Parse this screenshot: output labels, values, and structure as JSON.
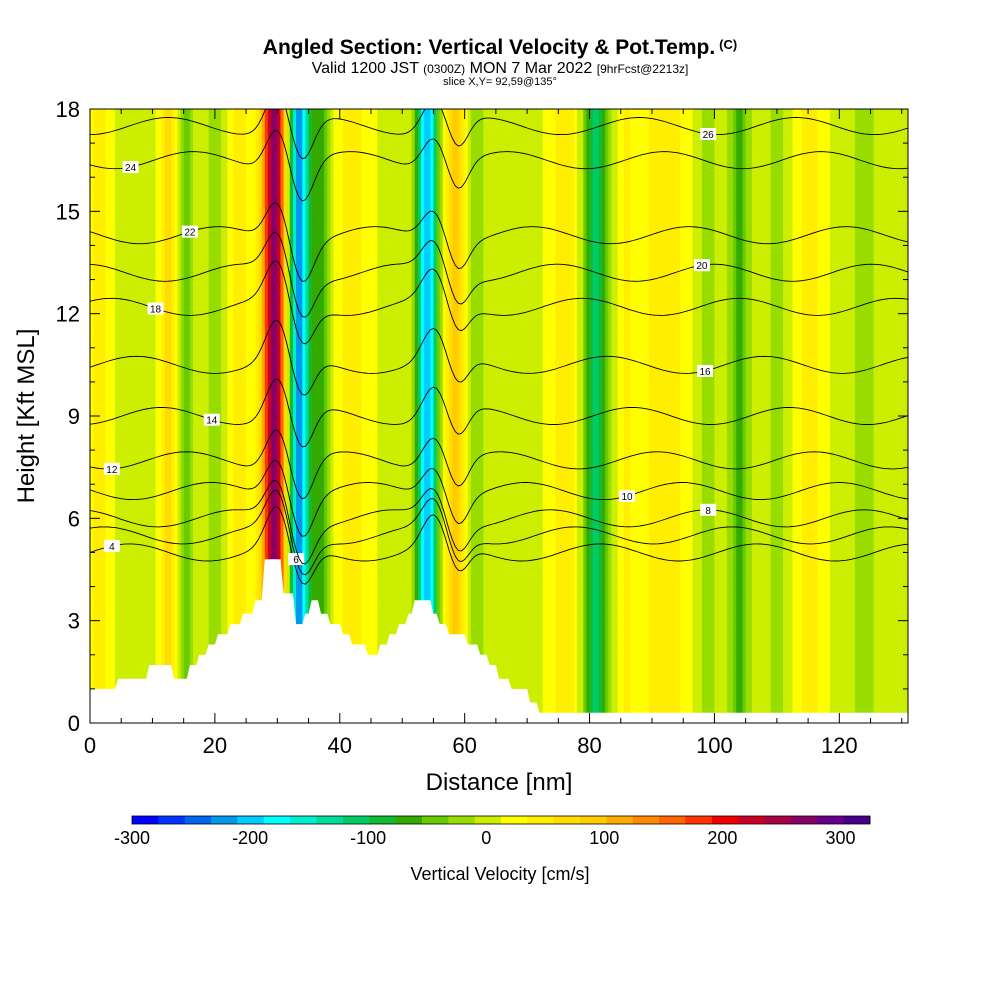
{
  "title": {
    "main": "Angled Section: Vertical Velocity & Pot.Temp.",
    "copyright": "(C)"
  },
  "subtitle": {
    "valid": "Valid 1200 JST",
    "utc": "(0300Z)",
    "date": "MON 7 Mar 2022",
    "forecast": "[9hrFcst@2213z]"
  },
  "slice_label": "slice X,Y= 92,59@135°",
  "chart_data": {
    "type": "heatmap",
    "title": "Angled Section: Vertical Velocity & Pot.Temp.",
    "xlabel": "Distance [nm]",
    "ylabel": "Height [Kft MSL]",
    "xlim": [
      0,
      131
    ],
    "ylim": [
      0,
      18
    ],
    "x_ticks": [
      "0",
      "20",
      "40",
      "60",
      "80",
      "100",
      "120"
    ],
    "y_ticks": [
      "0",
      "3",
      "6",
      "9",
      "12",
      "15",
      "18"
    ],
    "colorbar": {
      "label": "Vertical Velocity [cm/s]",
      "min": -300,
      "max": 325,
      "ticks": [
        "-300",
        "-200",
        "-100",
        "0",
        "100",
        "200",
        "300"
      ],
      "colors": [
        "#0000ff",
        "#0033ff",
        "#0066ee",
        "#0099ee",
        "#00ccff",
        "#00ffff",
        "#00eecc",
        "#00dd99",
        "#00cc66",
        "#11bb33",
        "#33aa00",
        "#66cc00",
        "#99dd00",
        "#ccee00",
        "#ffff00",
        "#ffee00",
        "#ffdd00",
        "#ffcc00",
        "#ffaa00",
        "#ff8800",
        "#ff6600",
        "#ff3300",
        "#ee0000",
        "#cc0022",
        "#aa0044",
        "#880066",
        "#660088",
        "#440088"
      ]
    },
    "background_value": 10,
    "updraft_downdraft_bands": [
      {
        "x": 1.5,
        "w": 1.5,
        "v": 45
      },
      {
        "x": 7,
        "w": 1.5,
        "v": -10
      },
      {
        "x": 12.5,
        "w": 1.2,
        "v": 60
      },
      {
        "x": 15.5,
        "w": 1.2,
        "v": -45
      },
      {
        "x": 20,
        "w": 1.5,
        "v": -30
      },
      {
        "x": 24,
        "w": 1.5,
        "v": 45
      },
      {
        "x": 29.5,
        "w": 1.8,
        "v": 260
      },
      {
        "x": 33.5,
        "w": 1.6,
        "v": -230
      },
      {
        "x": 37,
        "w": 1.5,
        "v": -70
      },
      {
        "x": 42,
        "w": 2.5,
        "v": 35
      },
      {
        "x": 54,
        "w": 1.6,
        "v": -220
      },
      {
        "x": 58.5,
        "w": 1.5,
        "v": 90
      },
      {
        "x": 62,
        "w": 1.4,
        "v": -40
      },
      {
        "x": 76,
        "w": 2,
        "v": 40
      },
      {
        "x": 81,
        "w": 1.8,
        "v": -120
      },
      {
        "x": 86,
        "w": 1.5,
        "v": 25
      },
      {
        "x": 92,
        "w": 3.5,
        "v": 40
      },
      {
        "x": 99,
        "w": 2,
        "v": -25
      },
      {
        "x": 104,
        "w": 1.6,
        "v": -70
      },
      {
        "x": 110,
        "w": 2.5,
        "v": -25
      },
      {
        "x": 115,
        "w": 2,
        "v": 40
      },
      {
        "x": 124,
        "w": 2,
        "v": -30
      }
    ],
    "terrain": [
      [
        0,
        1.0
      ],
      [
        4,
        1.0
      ],
      [
        4.5,
        1.3
      ],
      [
        9,
        1.3
      ],
      [
        9.5,
        1.7
      ],
      [
        13,
        1.7
      ],
      [
        13.5,
        1.3
      ],
      [
        15.5,
        1.3
      ],
      [
        16,
        1.7
      ],
      [
        17,
        1.7
      ],
      [
        17.5,
        2.0
      ],
      [
        18.5,
        2.0
      ],
      [
        19,
        2.3
      ],
      [
        20,
        2.3
      ],
      [
        20.5,
        2.6
      ],
      [
        22,
        2.6
      ],
      [
        22.5,
        2.9
      ],
      [
        24,
        2.9
      ],
      [
        24.5,
        3.2
      ],
      [
        26,
        3.2
      ],
      [
        26.5,
        3.6
      ],
      [
        27.5,
        3.6
      ],
      [
        28,
        4.8
      ],
      [
        30.5,
        4.8
      ],
      [
        31,
        3.8
      ],
      [
        32.5,
        3.8
      ],
      [
        33,
        2.9
      ],
      [
        34,
        2.9
      ],
      [
        34.5,
        3.2
      ],
      [
        35,
        3.2
      ],
      [
        35.5,
        3.6
      ],
      [
        36.5,
        3.6
      ],
      [
        37,
        3.2
      ],
      [
        38,
        3.2
      ],
      [
        38.5,
        2.9
      ],
      [
        40,
        2.9
      ],
      [
        40.5,
        2.6
      ],
      [
        41.5,
        2.6
      ],
      [
        42,
        2.3
      ],
      [
        44,
        2.3
      ],
      [
        44.5,
        2.0
      ],
      [
        46,
        2.0
      ],
      [
        46.5,
        2.3
      ],
      [
        47.5,
        2.3
      ],
      [
        48,
        2.6
      ],
      [
        49,
        2.6
      ],
      [
        49.5,
        2.9
      ],
      [
        50.5,
        2.9
      ],
      [
        51,
        3.2
      ],
      [
        51.5,
        3.2
      ],
      [
        52,
        3.6
      ],
      [
        54.5,
        3.6
      ],
      [
        55,
        3.2
      ],
      [
        55.5,
        3.2
      ],
      [
        56,
        2.9
      ],
      [
        57,
        2.9
      ],
      [
        57.5,
        2.6
      ],
      [
        60,
        2.6
      ],
      [
        60.5,
        2.3
      ],
      [
        62,
        2.3
      ],
      [
        62.5,
        2.0
      ],
      [
        63.5,
        2.0
      ],
      [
        64,
        1.7
      ],
      [
        65,
        1.7
      ],
      [
        65.5,
        1.3
      ],
      [
        67,
        1.3
      ],
      [
        67.5,
        1.0
      ],
      [
        70,
        1.0
      ],
      [
        70.5,
        0.6
      ],
      [
        71.5,
        0.6
      ],
      [
        72,
        0.3
      ],
      [
        131,
        0.3
      ]
    ],
    "theta_contours": [
      {
        "label": "4",
        "base": 5.0,
        "lx": 3.5
      },
      {
        "label": "6",
        "base": 5.5,
        "lx": 33
      },
      {
        "label": "8",
        "base": 6.0,
        "lx": 99
      },
      {
        "label": "10",
        "base": 6.8,
        "lx": 86
      },
      {
        "label": "12",
        "base": 7.7,
        "lx": 3.5
      },
      {
        "label": "14",
        "base": 9.0,
        "lx": 19.5
      },
      {
        "label": "16",
        "base": 10.5,
        "lx": 98.5
      },
      {
        "label": "18",
        "base": 12.2,
        "lx": 10.5
      },
      {
        "label": "20",
        "base": 13.2,
        "lx": 98
      },
      {
        "label": "22",
        "base": 14.3,
        "lx": 16
      },
      {
        "label": "24",
        "base": 16.5,
        "lx": 6.5
      },
      {
        "label": "26",
        "base": 17.5,
        "lx": 99
      }
    ]
  }
}
